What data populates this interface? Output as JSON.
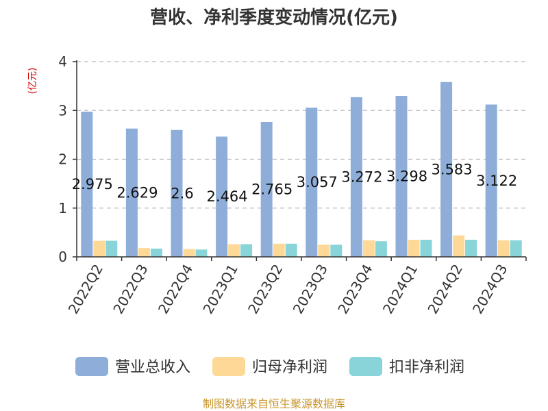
{
  "chart_data": {
    "type": "bar",
    "title": "营收、净利季度变动情况(亿元)",
    "unit_label": "(亿元)",
    "categories": [
      "2022Q2",
      "2022Q3",
      "2022Q4",
      "2023Q1",
      "2023Q2",
      "2023Q3",
      "2023Q4",
      "2024Q1",
      "2024Q2",
      "2024Q3"
    ],
    "series": [
      {
        "name": "营业总收入",
        "color": "#8eaed9",
        "values": [
          2.975,
          2.629,
          2.6,
          2.464,
          2.765,
          3.057,
          3.272,
          3.298,
          3.583,
          3.122
        ]
      },
      {
        "name": "归母净利润",
        "color": "#fdd896",
        "values": [
          0.33,
          0.18,
          0.16,
          0.26,
          0.27,
          0.25,
          0.34,
          0.35,
          0.44,
          0.34
        ]
      },
      {
        "name": "扣非净利润",
        "color": "#88d4d8",
        "values": [
          0.33,
          0.17,
          0.15,
          0.26,
          0.27,
          0.25,
          0.32,
          0.35,
          0.35,
          0.34
        ]
      }
    ],
    "data_labels": [
      "2.975",
      "2.629",
      "2.6",
      "2.464",
      "2.765",
      "3.057",
      "3.272",
      "3.298",
      "3.583",
      "3.122"
    ],
    "ylim": [
      0,
      4
    ],
    "yticks": [
      "0",
      "1",
      "2",
      "3",
      "4"
    ],
    "grid": true,
    "legend_position": "bottom"
  },
  "source_text": "制图数据来自恒生聚源数据库"
}
